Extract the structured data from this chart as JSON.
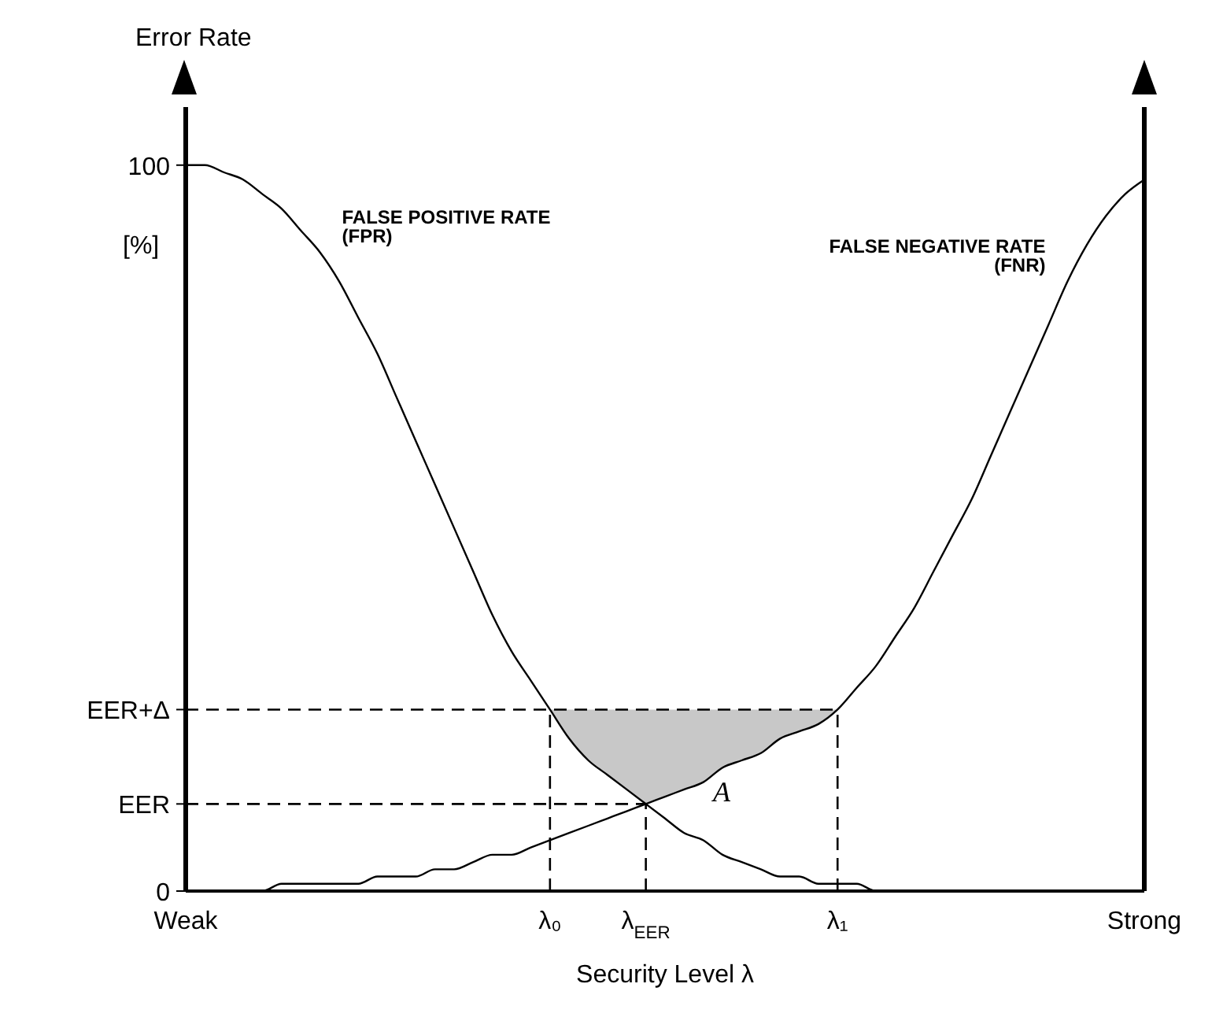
{
  "chart_data": {
    "type": "line",
    "ylabel": "Error Rate",
    "xlabel": "Security Level λ",
    "categories": [
      "Weak",
      null,
      null,
      null,
      null,
      null,
      null,
      null,
      null,
      null,
      null,
      null,
      null,
      null,
      null,
      null,
      null,
      null,
      null,
      "λ₀",
      null,
      null,
      null,
      null,
      "λ$_{EER}$",
      null,
      null,
      null,
      null,
      null,
      null,
      null,
      null,
      null,
      "λ₁",
      null,
      null,
      null,
      null,
      null,
      null,
      null,
      null,
      null,
      null,
      null,
      null,
      null,
      null,
      null,
      "Strong"
    ],
    "series": [
      {
        "name": "FALSE POSITIVE RATE (FPR)",
        "color": "#000000",
        "values": [
          100,
          100,
          99,
          98,
          96,
          94,
          91,
          88,
          84,
          79,
          74,
          68,
          62,
          56,
          50,
          44,
          38,
          33,
          29,
          25,
          21,
          18,
          16,
          14,
          12,
          10,
          8,
          7,
          5,
          4,
          3,
          2,
          2,
          1,
          1,
          1,
          0,
          0,
          0,
          0,
          0,
          0,
          0,
          0,
          0,
          0,
          0,
          0,
          0,
          0,
          0
        ]
      },
      {
        "name": "FALSE NEGATIVE RATE (FNR)",
        "color": "#000000",
        "values": [
          0,
          0,
          0,
          0,
          0,
          1,
          1,
          1,
          1,
          1,
          2,
          2,
          2,
          3,
          3,
          4,
          5,
          5,
          6,
          7,
          8,
          9,
          10,
          11,
          12,
          13,
          14,
          15,
          17,
          18,
          19,
          21,
          22,
          23,
          25,
          28,
          31,
          35,
          39,
          44,
          49,
          54,
          60,
          66,
          72,
          78,
          84,
          89,
          93,
          96,
          98
        ]
      }
    ],
    "ylim": [
      0,
      108
    ],
    "yticks": [
      0,
      {
        "value": 12,
        "label": "EER"
      },
      {
        "value": 25,
        "label": "EER+Δ"
      },
      100
    ],
    "ref_lines": [
      {
        "axis": "y",
        "value": 25,
        "line_style": "dashed",
        "color": "#000000"
      },
      {
        "axis": "y",
        "value": 12,
        "line_style": "dashed",
        "color": "#000000"
      },
      {
        "axis": "x",
        "value": "λ₀",
        "line_style": "dashed",
        "color": "#000000"
      },
      {
        "axis": "x",
        "value": "λ$_{EER}$",
        "line_style": "dashed",
        "color": "#000000"
      },
      {
        "axis": "x",
        "value": "λ₁",
        "line_style": "dashed",
        "color": "#000000"
      }
    ],
    "annotations": [
      "[%]",
      "A"
    ],
    "marker": "none",
    "line_style": "solid",
    "legend": false,
    "grid": false
  }
}
